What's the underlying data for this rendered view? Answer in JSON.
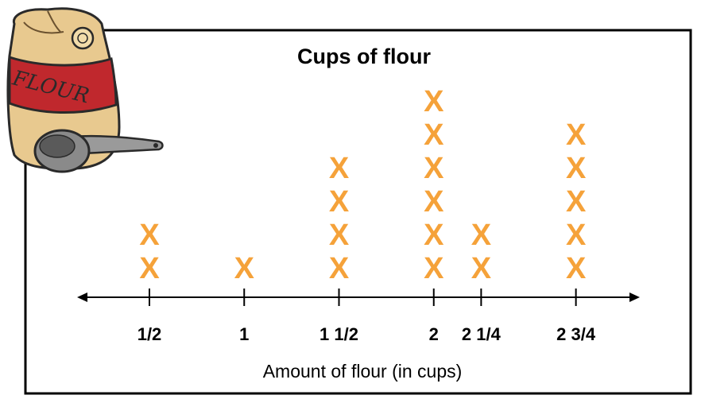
{
  "chart_data": {
    "type": "dot-plot",
    "title": "Cups of flour",
    "xlabel": "Amount of flour (in cups)",
    "ylabel": "",
    "mark_symbol": "X",
    "mark_color": "#f5a23a",
    "categories": [
      "1/2",
      "1",
      "1 1/2",
      "2",
      "2 1/4",
      "2 3/4"
    ],
    "x": [
      0.5,
      1,
      1.5,
      2,
      2.25,
      2.75
    ],
    "counts": [
      2,
      1,
      4,
      6,
      2,
      5
    ],
    "grid": false,
    "legend": "none"
  },
  "illustration": {
    "icon": "flour-sack-with-measuring-cup-icon",
    "sack_label": "FLOUR",
    "colors": {
      "sack": "#e8c98f",
      "band": "#c0282d",
      "scoop": "#8a8a8a"
    }
  }
}
